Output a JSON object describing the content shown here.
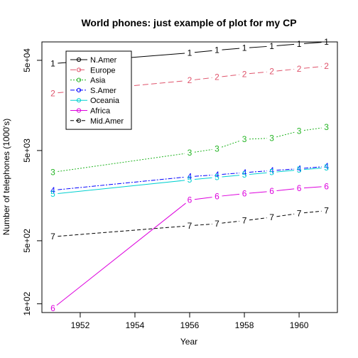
{
  "chart_data": {
    "type": "line",
    "title": "World phones: just example of plot for my CP",
    "xlabel": "Year",
    "ylabel": "Number of telephones (1000's)",
    "yscale": "log",
    "xlim": [
      1950.6,
      1961.4
    ],
    "ylim": [
      80,
      80000
    ],
    "x": [
      1951,
      1956,
      1957,
      1958,
      1959,
      1960,
      1961
    ],
    "x_ticks": [
      1952,
      1954,
      1956,
      1958,
      1960
    ],
    "x_tick_labels": [
      "1952",
      "1954",
      "1956",
      "1958",
      "1960"
    ],
    "y_ticks": [
      100,
      500,
      5000,
      50000
    ],
    "y_tick_labels": [
      "1e+02",
      "5e+02",
      "5e+03",
      "5e+04"
    ],
    "legend_position": "top-left",
    "grid": false,
    "series": [
      {
        "name": "N.Amer",
        "label": "1",
        "color": "#000000",
        "dash": "",
        "values": [
          45939,
          60423,
          64721,
          68484,
          71799,
          76036,
          79831
        ]
      },
      {
        "name": "Europe",
        "label": "2",
        "color": "#DF536B",
        "dash": "8,4",
        "values": [
          21574,
          29990,
          32510,
          35218,
          37598,
          40341,
          43173
        ]
      },
      {
        "name": "Asia",
        "label": "3",
        "color": "#22B422",
        "dash": "2,2",
        "values": [
          2876,
          4708,
          5230,
          6662,
          6856,
          8220,
          9053
        ]
      },
      {
        "name": "S.Amer",
        "label": "4",
        "color": "#0000FF",
        "dash": "6,2,2,2",
        "values": [
          1815,
          2568,
          2695,
          2845,
          3000,
          3145,
          3338
        ]
      },
      {
        "name": "Oceania",
        "label": "5",
        "color": "#00D0D0",
        "dash": "",
        "values": [
          1646,
          2366,
          2526,
          2691,
          2868,
          3054,
          3224
        ]
      },
      {
        "name": "Africa",
        "label": "6",
        "color": "#DD00DD",
        "dash": "",
        "values": [
          89,
          1411,
          1546,
          1663,
          1769,
          1905,
          2005
        ]
      },
      {
        "name": "Mid.Amer",
        "label": "7",
        "color": "#000000",
        "dash": "5,3",
        "values": [
          555,
          733,
          773,
          836,
          911,
          1008,
          1076
        ]
      }
    ]
  }
}
